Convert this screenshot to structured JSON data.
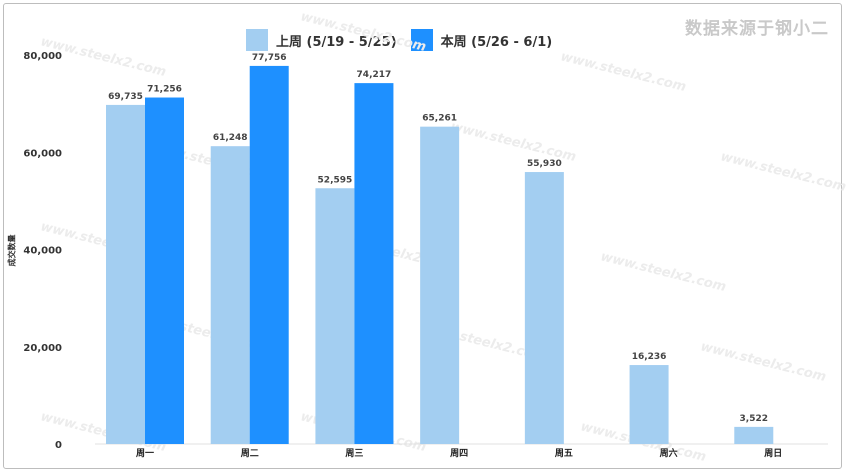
{
  "source_note": "数据来源于钢小二",
  "watermark": "www.steelx2.com",
  "chart_data": {
    "type": "bar",
    "title": "",
    "xlabel": "",
    "ylabel": "成交数量",
    "ylim": [
      0,
      80000
    ],
    "yticks": [
      0,
      20000,
      40000,
      60000,
      80000
    ],
    "ytick_labels": [
      "0",
      "20,000",
      "40,000",
      "60,000",
      "80,000"
    ],
    "legend_position": "top-center",
    "grid": false,
    "categories": [
      "周一",
      "周二",
      "周三",
      "周四",
      "周五",
      "周六",
      "周日"
    ],
    "series": [
      {
        "name": "上周 (5/19 - 5/25)",
        "color": "#a3cef1",
        "values": [
          69735,
          61248,
          52595,
          65261,
          55930,
          16236,
          3522
        ],
        "labels": [
          "69,735",
          "61,248",
          "52,595",
          "65,261",
          "55,930",
          "16,236",
          "3,522"
        ]
      },
      {
        "name": "本周 (5/26 - 6/1)",
        "color": "#1e90ff",
        "values": [
          71256,
          77756,
          74217,
          null,
          null,
          null,
          null
        ],
        "labels": [
          "71,256",
          "77,756",
          "74,217",
          null,
          null,
          null,
          null
        ]
      }
    ]
  }
}
